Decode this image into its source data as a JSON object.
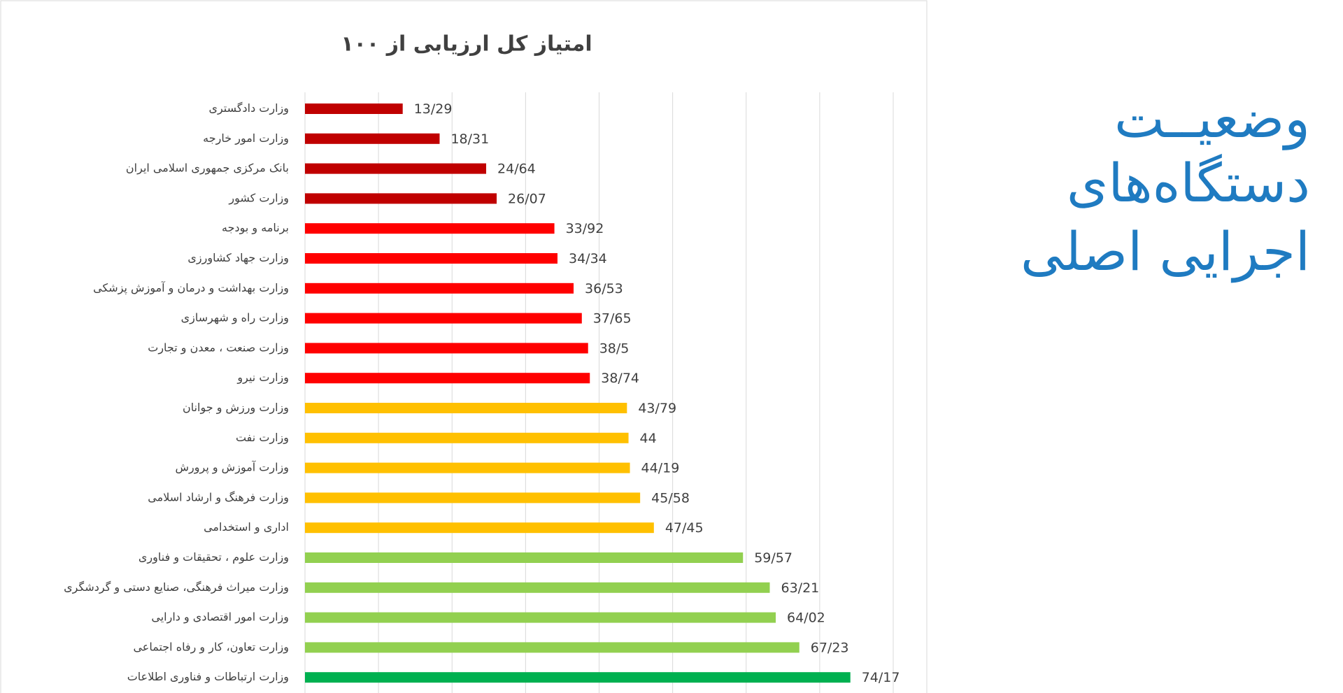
{
  "chart_data": {
    "type": "bar",
    "orientation": "horizontal",
    "title": "امتیاز کل ارزیابی از ۱۰۰",
    "categories": [
      "وزارت دادگستری",
      "وزارت امور خارجه",
      "بانک مرکزی جمهوری اسلامی ایران",
      "وزارت کشور",
      "برنامه و بودجه",
      "وزارت جهاد کشاورزی",
      "وزارت بهداشت و درمان و آموزش پزشکی",
      "وزارت راه و شهرسازی",
      "وزارت صنعت ، معدن و تجارت",
      "وزارت نیرو",
      "وزارت ورزش و جوانان",
      "وزارت نفت",
      "وزارت آموزش و پرورش",
      "وزارت فرهنگ و ارشاد اسلامی",
      "اداری و استخدامی",
      "وزارت علوم ، تحقیقات و فناوری",
      "وزارت میراث فرهنگی، صنایع دستی و گردشگری",
      "وزارت امور اقتصادی و دارایی",
      "وزارت تعاون، کار و رفاه اجتماعی",
      "وزارت ارتباطات و فناوری اطلاعات"
    ],
    "values": [
      13.29,
      18.31,
      24.64,
      26.07,
      33.92,
      34.34,
      36.53,
      37.65,
      38.5,
      38.74,
      43.79,
      44,
      44.19,
      45.58,
      47.45,
      59.57,
      63.21,
      64.02,
      67.23,
      74.17
    ],
    "value_labels": [
      "13/29",
      "18/31",
      "24/64",
      "26/07",
      "33/92",
      "34/34",
      "36/53",
      "37/65",
      "38/5",
      "38/74",
      "43/79",
      "44",
      "44/19",
      "45/58",
      "47/45",
      "59/57",
      "63/21",
      "64/02",
      "67/23",
      "74/17"
    ],
    "colors": [
      "#c00000",
      "#c00000",
      "#c00000",
      "#c00000",
      "#ff0000",
      "#ff0000",
      "#ff0000",
      "#ff0000",
      "#ff0000",
      "#ff0000",
      "#ffc000",
      "#ffc000",
      "#ffc000",
      "#ffc000",
      "#ffc000",
      "#92d050",
      "#92d050",
      "#92d050",
      "#92d050",
      "#00b050"
    ],
    "xlim": [
      0,
      80
    ],
    "xticks": [
      0,
      10,
      20,
      30,
      40,
      50,
      60,
      70,
      80
    ],
    "grid": true
  },
  "side_title": [
    "وضعیــت",
    "دستگاه‌های",
    "اجرایی اصلی"
  ]
}
